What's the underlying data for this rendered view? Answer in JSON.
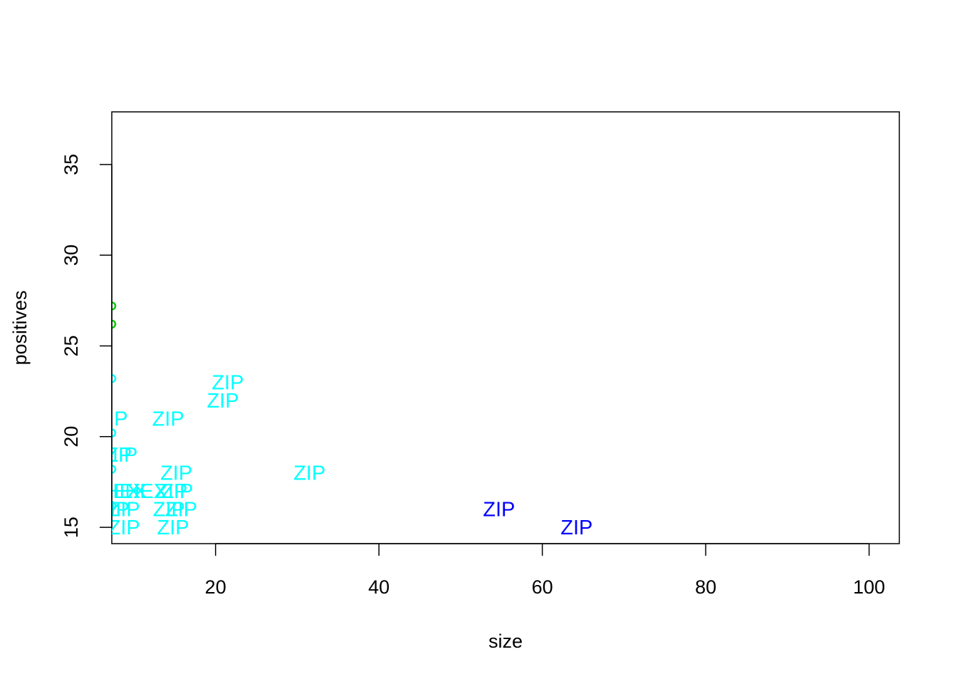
{
  "chart_data": {
    "type": "scatter",
    "title": "",
    "xlabel": "size",
    "ylabel": "positives",
    "xlim": [
      7.3,
      103.7
    ],
    "ylim": [
      14.1,
      37.9
    ],
    "x_ticks": [
      20,
      40,
      60,
      80,
      100
    ],
    "y_ticks": [
      15,
      20,
      25,
      30,
      35
    ],
    "grid": false,
    "legend": "none",
    "colors": {
      "green": "#00cd00",
      "cyan": "#00ffff",
      "blue": "#0000ff"
    },
    "points": [
      {
        "x": 7.3,
        "y": 27.2,
        "marker": "circle",
        "color": "#00cd00"
      },
      {
        "x": 7.3,
        "y": 26.2,
        "marker": "circle",
        "color": "#00cd00"
      },
      {
        "x": 7.3,
        "y": 23.2,
        "marker": "circle",
        "color": "#00ffff"
      },
      {
        "x": 7.3,
        "y": 20.2,
        "marker": "circle",
        "color": "#00ffff"
      },
      {
        "x": 7.3,
        "y": 18.2,
        "marker": "circle",
        "color": "#00ffff"
      },
      {
        "x": 7.3,
        "y": 16.2,
        "marker": "circle",
        "color": "#00ffff"
      },
      {
        "x": 7.3,
        "y": 21,
        "label": "ZIP",
        "color": "#00ffff"
      },
      {
        "x": 21.5,
        "y": 23,
        "label": "ZIP",
        "color": "#00ffff"
      },
      {
        "x": 20.9,
        "y": 22,
        "label": "ZIP",
        "color": "#00ffff"
      },
      {
        "x": 14.2,
        "y": 21,
        "label": "ZIP",
        "color": "#00ffff"
      },
      {
        "x": 8.5,
        "y": 19,
        "label": "ZIP",
        "color": "#00ffff"
      },
      {
        "x": 7.8,
        "y": 19,
        "label": "ZIP",
        "color": "#00ffff"
      },
      {
        "x": 15.2,
        "y": 18,
        "label": "ZIP",
        "color": "#00ffff"
      },
      {
        "x": 31.5,
        "y": 18,
        "label": "ZIP",
        "color": "#00ffff"
      },
      {
        "x": 8.2,
        "y": 17,
        "label": "HEX",
        "color": "#00ffff"
      },
      {
        "x": 9.0,
        "y": 17,
        "label": "HEX",
        "color": "#00ffff"
      },
      {
        "x": 11.5,
        "y": 17,
        "label": "HEX",
        "color": "#00ffff"
      },
      {
        "x": 14.6,
        "y": 17,
        "label": "ZIP",
        "color": "#00ffff"
      },
      {
        "x": 15.3,
        "y": 17,
        "label": "ZIP",
        "color": "#00ffff"
      },
      {
        "x": 7.5,
        "y": 16,
        "label": "ZIP",
        "color": "#00ffff"
      },
      {
        "x": 8.8,
        "y": 16,
        "label": "ZIP",
        "color": "#00ffff"
      },
      {
        "x": 14.3,
        "y": 16,
        "label": "ZIP",
        "color": "#00ffff"
      },
      {
        "x": 15.8,
        "y": 16,
        "label": "ZIP",
        "color": "#00ffff"
      },
      {
        "x": 8.8,
        "y": 15,
        "label": "ZIP",
        "color": "#00ffff"
      },
      {
        "x": 14.8,
        "y": 15,
        "label": "ZIP",
        "color": "#00ffff"
      },
      {
        "x": 54.7,
        "y": 16,
        "label": "ZIP",
        "color": "#0000ff"
      },
      {
        "x": 64.2,
        "y": 15,
        "label": "ZIP",
        "color": "#0000ff"
      }
    ]
  }
}
